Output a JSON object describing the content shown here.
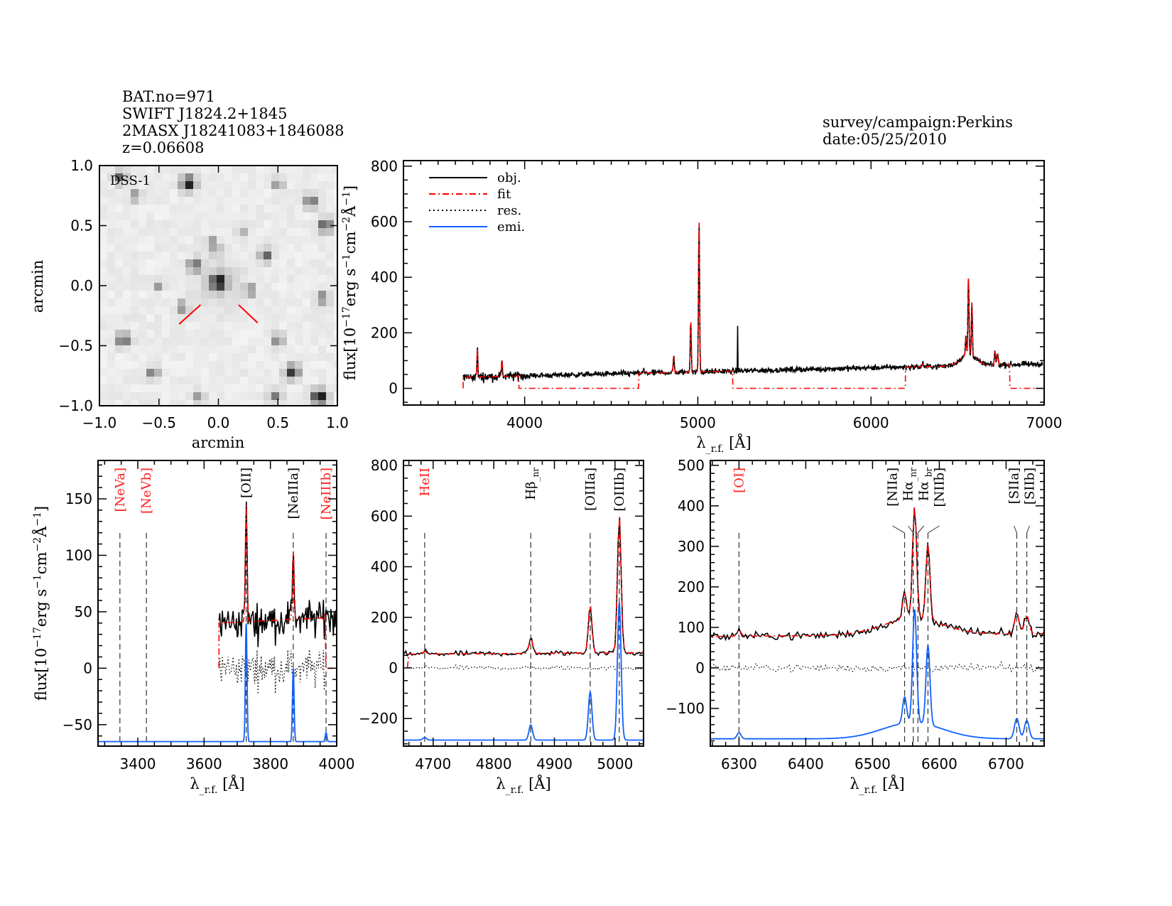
{
  "header": {
    "left_lines": [
      "BAT.no=971",
      "SWIFT J1824.2+1845",
      "2MASX J18241083+1846088",
      "z=0.06608"
    ],
    "right_lines": [
      "survey/campaign:Perkins",
      "date:05/25/2010"
    ]
  },
  "colors": {
    "obj": "#000000",
    "fit": "#ff0000",
    "res": "#000000",
    "emi": "#1060ff",
    "red_label": "#ff2020"
  },
  "chart_data": [
    {
      "type": "image",
      "label": "DSS-1",
      "xlabel": "arcmin",
      "ylabel": "arcmin",
      "xlim": [
        -1.0,
        1.0
      ],
      "ylim": [
        -1.0,
        1.0
      ],
      "xticks": [
        "−1.0",
        "−0.5",
        "0.0",
        "0.5",
        "1.0"
      ],
      "yticks": [
        "−1.0",
        "−0.5",
        "0.0",
        "0.5",
        "1.0"
      ],
      "stars": [
        [
          0.0,
          0.03,
          1.0
        ],
        [
          -0.25,
          0.85,
          0.9
        ],
        [
          0.85,
          -0.93,
          1.0
        ],
        [
          0.62,
          -0.72,
          0.8
        ],
        [
          -0.8,
          -0.45,
          0.7
        ],
        [
          0.4,
          0.25,
          0.6
        ],
        [
          -0.2,
          0.17,
          0.6
        ],
        [
          0.9,
          0.5,
          0.7
        ],
        [
          0.78,
          0.7,
          0.6
        ],
        [
          0.88,
          -0.1,
          0.5
        ],
        [
          -0.55,
          -0.73,
          0.5
        ],
        [
          0.5,
          -0.45,
          0.5
        ],
        [
          -0.3,
          -0.18,
          0.45
        ],
        [
          0.27,
          -0.04,
          0.45
        ],
        [
          0.48,
          -0.92,
          0.5
        ],
        [
          -0.83,
          0.9,
          0.6
        ],
        [
          -0.7,
          0.75,
          0.4
        ],
        [
          0.5,
          0.85,
          0.4
        ],
        [
          -0.17,
          -0.93,
          0.4
        ],
        [
          -0.5,
          0.0,
          0.35
        ],
        [
          0.2,
          0.46,
          0.3
        ],
        [
          -0.05,
          0.37,
          0.3
        ],
        [
          -0.02,
          0.3,
          0.3
        ]
      ],
      "marker_color": "#ff0000"
    },
    {
      "type": "line",
      "panel": "full",
      "xlabel": "λ_r.f. [Å]",
      "ylabel": "flux[10^-17 erg s^-1 cm^-2 Å^-1]",
      "xlim": [
        3300,
        7000
      ],
      "ylim": [
        -60,
        820
      ],
      "xticks": [
        4000,
        5000,
        6000,
        7000
      ],
      "yticks": [
        0,
        200,
        400,
        600,
        800
      ],
      "legend": [
        "obj.",
        "fit",
        "res.",
        "emi."
      ],
      "legend_position": "top-left",
      "data_range": [
        3645,
        6990
      ],
      "continuum": {
        "start": 40,
        "end": 88
      },
      "fit_windows": [
        [
          3645,
          3965
        ],
        [
          4660,
          5200
        ],
        [
          6200,
          6800
        ]
      ],
      "artifact": {
        "center": 5230,
        "flux": 225
      }
    },
    {
      "type": "line",
      "panel": "zoom-1",
      "xlim": [
        3280,
        4000
      ],
      "ylim": [
        -69,
        184
      ],
      "xticks": [
        3400,
        3600,
        3800,
        4000
      ],
      "yticks": [
        -50,
        0,
        50,
        100,
        150
      ],
      "emi_baseline": -65,
      "xlabel": "λ_r.f. [Å]",
      "ylabel": "flux[10^-17 erg s^-1 cm^-2 Å^-1]",
      "line_labels": [
        {
          "text": "[NeVa]",
          "center": 3346,
          "red": true
        },
        {
          "text": "[NeVb]",
          "center": 3426,
          "red": true
        },
        {
          "text": "[OII]",
          "center": 3727,
          "red": false
        },
        {
          "text": "[NeIIIa]",
          "center": 3869,
          "red": false
        },
        {
          "text": "[NeIIIb]",
          "center": 3968,
          "red": true
        }
      ]
    },
    {
      "type": "line",
      "panel": "zoom-2",
      "xlim": [
        4651,
        5047
      ],
      "ylim": [
        -309,
        820
      ],
      "xticks": [
        4700,
        4800,
        4900,
        5000
      ],
      "yticks": [
        -200,
        0,
        200,
        400,
        600,
        800
      ],
      "emi_baseline": -285,
      "xlabel": "λ_r.f. [Å]",
      "line_labels": [
        {
          "text": "HeII",
          "center": 4686,
          "red": true
        },
        {
          "text": "Hβ_nr",
          "center": 4861,
          "red": false
        },
        {
          "text": "[OIIIa]",
          "center": 4959,
          "red": false
        },
        {
          "text": "[OIIIb]",
          "center": 5007,
          "red": false
        }
      ]
    },
    {
      "type": "line",
      "panel": "zoom-3",
      "xlim": [
        6257,
        6757
      ],
      "ylim": [
        -193,
        512
      ],
      "xticks": [
        6300,
        6400,
        6500,
        6600,
        6700
      ],
      "yticks": [
        -100,
        0,
        100,
        200,
        300,
        400,
        500
      ],
      "emi_baseline": -175,
      "xlabel": "λ_r.f. [Å]",
      "line_labels": [
        {
          "text": "[OI]",
          "center": 6300,
          "red": true
        },
        {
          "text": "[NIIa]",
          "center": 6548,
          "red": false
        },
        {
          "text": "Hα_nr",
          "center": 6561,
          "red": false
        },
        {
          "text": "Hα_br",
          "center": 6568,
          "red": false
        },
        {
          "text": "[NIIb]",
          "center": 6583,
          "red": false
        },
        {
          "text": "[SIIa]",
          "center": 6716,
          "red": false
        },
        {
          "text": "[SIIb]",
          "center": 6731,
          "red": false
        }
      ]
    }
  ],
  "emission_lines": [
    {
      "center": 3727,
      "amp": 105,
      "sigma": 2.5
    },
    {
      "center": 3869,
      "amp": 65,
      "sigma": 2.5
    },
    {
      "center": 3968,
      "amp": 8,
      "sigma": 2.5
    },
    {
      "center": 4686,
      "amp": 10,
      "sigma": 3
    },
    {
      "center": 4861,
      "amp": 60,
      "sigma": 3
    },
    {
      "center": 4959,
      "amp": 190,
      "sigma": 3
    },
    {
      "center": 5007,
      "amp": 545,
      "sigma": 3
    },
    {
      "center": 6300,
      "amp": 15,
      "sigma": 3
    },
    {
      "center": 6548,
      "amp": 65,
      "sigma": 3
    },
    {
      "center": 6563,
      "amp": 280,
      "sigma": 3
    },
    {
      "center": 6583,
      "amp": 195,
      "sigma": 3
    },
    {
      "center": 6716,
      "amp": 50,
      "sigma": 3.5
    },
    {
      "center": 6731,
      "amp": 45,
      "sigma": 3.5
    },
    {
      "center": 6560,
      "amp": 40,
      "sigma": 45
    }
  ]
}
